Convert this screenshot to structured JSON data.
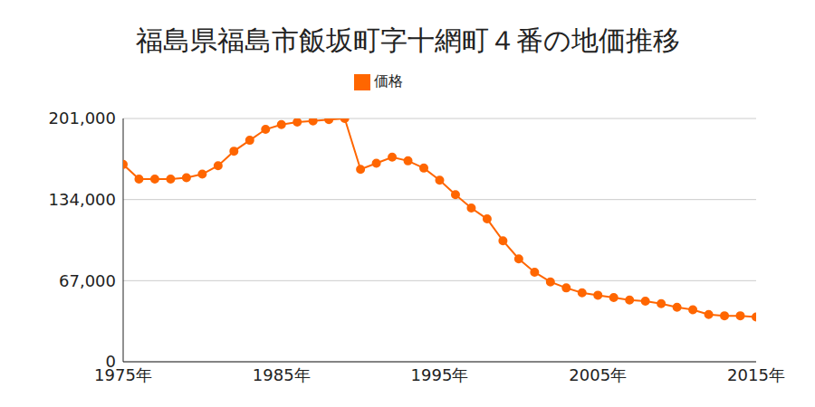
{
  "chart_data": {
    "type": "line",
    "title": "福島県福島市飯坂町字十網町４番の地価推移",
    "x": [
      1975,
      1976,
      1977,
      1978,
      1979,
      1980,
      1981,
      1982,
      1983,
      1984,
      1985,
      1986,
      1987,
      1988,
      1989,
      1990,
      1991,
      1992,
      1993,
      1994,
      1995,
      1996,
      1997,
      1998,
      1999,
      2000,
      2001,
      2002,
      2003,
      2004,
      2005,
      2006,
      2007,
      2008,
      2009,
      2010,
      2011,
      2012,
      2013,
      2014,
      2015
    ],
    "series": [
      {
        "name": "価格",
        "color": "#ff6600",
        "marker": "circle",
        "line_style": "solid",
        "values": [
          163000,
          151000,
          151000,
          151000,
          152000,
          155000,
          162000,
          174000,
          183000,
          192000,
          196000,
          198000,
          199000,
          200000,
          201000,
          159000,
          164000,
          169000,
          166000,
          160000,
          150000,
          138000,
          127000,
          118000,
          100000,
          85000,
          74000,
          66000,
          61000,
          57000,
          55000,
          53000,
          51000,
          50000,
          48000,
          45000,
          43000,
          39000,
          38000,
          38000,
          37000
        ]
      }
    ],
    "xlim": [
      1975,
      2015
    ],
    "xticks": [
      {
        "value": 1975,
        "label": "1975年"
      },
      {
        "value": 1985,
        "label": "1985年"
      },
      {
        "value": 1995,
        "label": "1995年"
      },
      {
        "value": 2005,
        "label": "2005年"
      },
      {
        "value": 2015,
        "label": "2015年"
      }
    ],
    "ylim": [
      0,
      201000
    ],
    "yticks": [
      0,
      {
        "value": 67000,
        "label": "67,000"
      },
      {
        "value": 134000,
        "label": "134,000"
      },
      {
        "value": 201000,
        "label": "201,000"
      }
    ],
    "grid": true,
    "legend": "top"
  }
}
